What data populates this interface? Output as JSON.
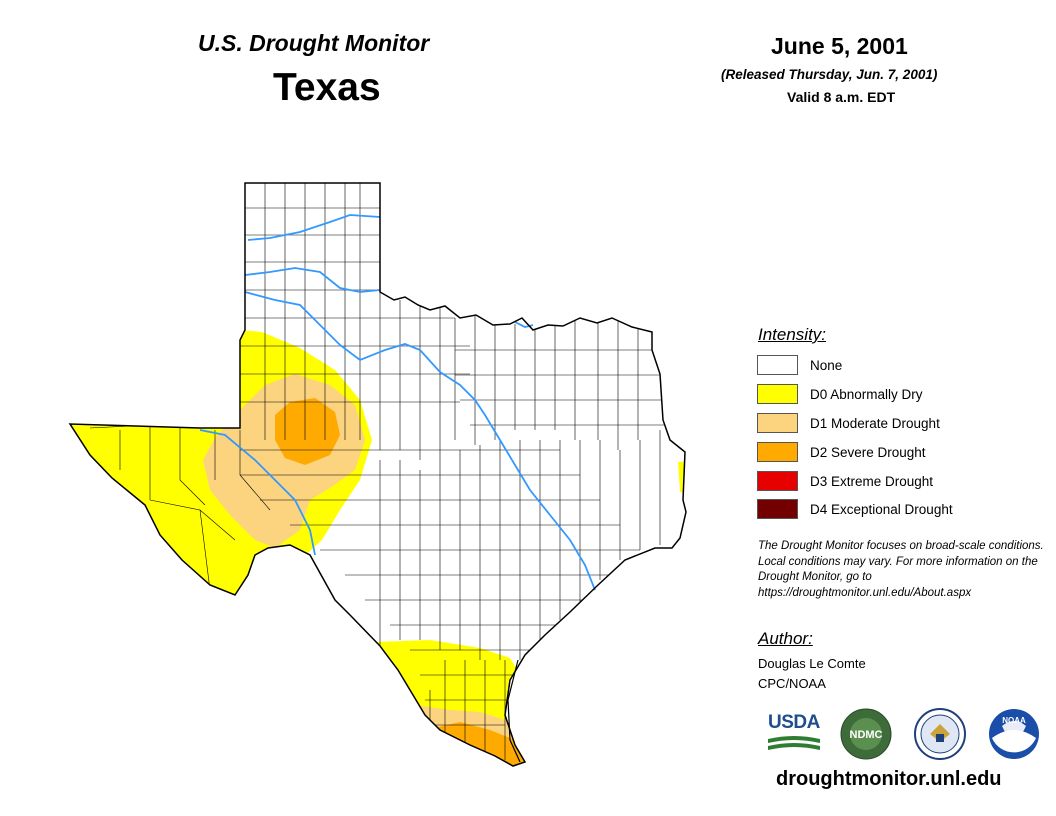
{
  "header": {
    "title": "U.S. Drought Monitor",
    "state": "Texas",
    "date": "June 5, 2001",
    "released": "(Released Thursday, Jun. 7, 2001)",
    "valid": "Valid 8 a.m. EDT"
  },
  "legend": {
    "heading": "Intensity:",
    "items": [
      {
        "label": "None",
        "color": "#ffffff"
      },
      {
        "label": "D0 Abnormally Dry",
        "color": "#ffff00"
      },
      {
        "label": "D1 Moderate Drought",
        "color": "#fcd37f"
      },
      {
        "label": "D2 Severe Drought",
        "color": "#ffaa00"
      },
      {
        "label": "D3 Extreme Drought",
        "color": "#e60000"
      },
      {
        "label": "D4 Exceptional Drought",
        "color": "#730000"
      }
    ]
  },
  "note": "The Drought Monitor focuses on broad-scale conditions. Local conditions may vary. For more information on the Drought Monitor, go to https://droughtmonitor.unl.edu/About.aspx",
  "author": {
    "heading": "Author:",
    "name": "Douglas Le Comte",
    "org": "CPC/NOAA"
  },
  "logos": {
    "usda": "USDA",
    "ndmc": "NDMC",
    "noaa": "NOAA"
  },
  "site": "droughtmonitor.unl.edu",
  "colors": {
    "river": "#3399ff",
    "border": "#000000",
    "d0": "#ffff00",
    "d1": "#fcd37f",
    "d2": "#ffaa00"
  }
}
